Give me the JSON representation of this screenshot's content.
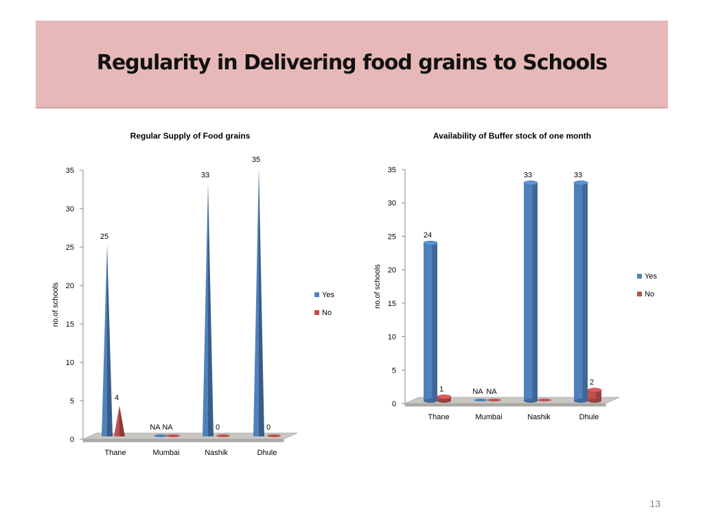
{
  "slide": {
    "title": "Regularity in Delivering food grains to Schools",
    "page_number": "13"
  },
  "colors": {
    "yes": "#4f81bd",
    "no": "#c0504d",
    "floor": "#c9c7c2"
  },
  "chart_data": [
    {
      "type": "bar",
      "shape": "cone",
      "title": "Regular Supply of Food grains",
      "ylabel": "no.of schools",
      "xlabel": "",
      "categories": [
        "Thane",
        "Mumbai",
        "Nashik",
        "Dhule"
      ],
      "ylim": [
        0,
        35
      ],
      "yticks": [
        0,
        5,
        10,
        15,
        20,
        25,
        30,
        35
      ],
      "legend_position": "right",
      "series": [
        {
          "name": "Yes",
          "values": [
            25,
            0,
            33,
            35
          ],
          "labels": [
            "25",
            "NA",
            "33",
            "35"
          ]
        },
        {
          "name": "No",
          "values": [
            4,
            0,
            0,
            0
          ],
          "labels": [
            "4",
            "NA",
            "0",
            "0"
          ]
        }
      ]
    },
    {
      "type": "bar",
      "shape": "cylinder",
      "title": "Availability of Buffer stock of one month",
      "ylabel": "no.of schools",
      "xlabel": "",
      "categories": [
        "Thane",
        "Mumbai",
        "Nashik",
        "Dhule"
      ],
      "ylim": [
        0,
        35
      ],
      "yticks": [
        0,
        5,
        10,
        15,
        20,
        25,
        30,
        35
      ],
      "legend_position": "right",
      "series": [
        {
          "name": "Yes",
          "values": [
            24,
            0,
            33,
            33
          ],
          "labels": [
            "24",
            "NA",
            "33",
            "33"
          ]
        },
        {
          "name": "No",
          "values": [
            1,
            0,
            0,
            2
          ],
          "labels": [
            "1",
            "NA",
            "",
            "2"
          ]
        }
      ]
    }
  ]
}
